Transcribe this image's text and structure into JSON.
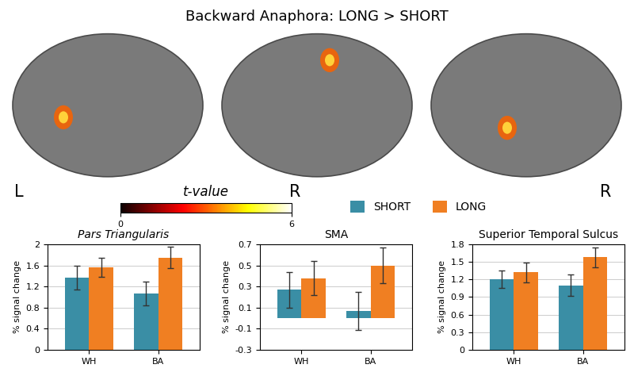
{
  "title": "Backward Anaphora: LONG > SHORT",
  "view_labels": [
    "L",
    "R",
    "R"
  ],
  "colorbar": {
    "label": "t-value",
    "range": [
      0,
      6
    ],
    "ticks": [
      0,
      6
    ]
  },
  "chart_data": [
    {
      "type": "bar",
      "title": "Pars Triangularis",
      "y_label": "% signal change",
      "categories": [
        "WH",
        "BA"
      ],
      "ylim": [
        0,
        2
      ],
      "yticks": [
        0,
        0.4,
        0.8,
        1.2,
        1.6,
        2
      ],
      "grid": true,
      "series": [
        {
          "name": "SHORT",
          "color": "#3a8ea5",
          "values": [
            1.37,
            1.07
          ],
          "errors": [
            0.22,
            0.23
          ]
        },
        {
          "name": "LONG",
          "color": "#f07f22",
          "values": [
            1.57,
            1.75
          ],
          "errors": [
            0.18,
            0.2
          ]
        }
      ]
    },
    {
      "type": "bar",
      "title": "SMA",
      "y_label": "% signal change",
      "categories": [
        "WH",
        "BA"
      ],
      "ylim": [
        -0.3,
        0.7
      ],
      "yticks": [
        -0.3,
        -0.1,
        0.1,
        0.3,
        0.5,
        0.7
      ],
      "grid": true,
      "series": [
        {
          "name": "SHORT",
          "color": "#3a8ea5",
          "values": [
            0.27,
            0.07
          ],
          "errors": [
            0.17,
            0.18
          ]
        },
        {
          "name": "LONG",
          "color": "#f07f22",
          "values": [
            0.38,
            0.5
          ],
          "errors": [
            0.16,
            0.17
          ]
        }
      ]
    },
    {
      "type": "bar",
      "title": "Superior Temporal Sulcus",
      "y_label": "% signal change",
      "categories": [
        "WH",
        "BA"
      ],
      "ylim": [
        0,
        1.8
      ],
      "yticks": [
        0,
        0.3,
        0.6,
        0.9,
        1.2,
        1.5,
        1.8
      ],
      "grid": true,
      "series": [
        {
          "name": "SHORT",
          "color": "#3a8ea5",
          "values": [
            1.2,
            1.1
          ],
          "errors": [
            0.15,
            0.18
          ]
        },
        {
          "name": "LONG",
          "color": "#f07f22",
          "values": [
            1.32,
            1.58
          ],
          "errors": [
            0.17,
            0.17
          ]
        }
      ]
    }
  ]
}
